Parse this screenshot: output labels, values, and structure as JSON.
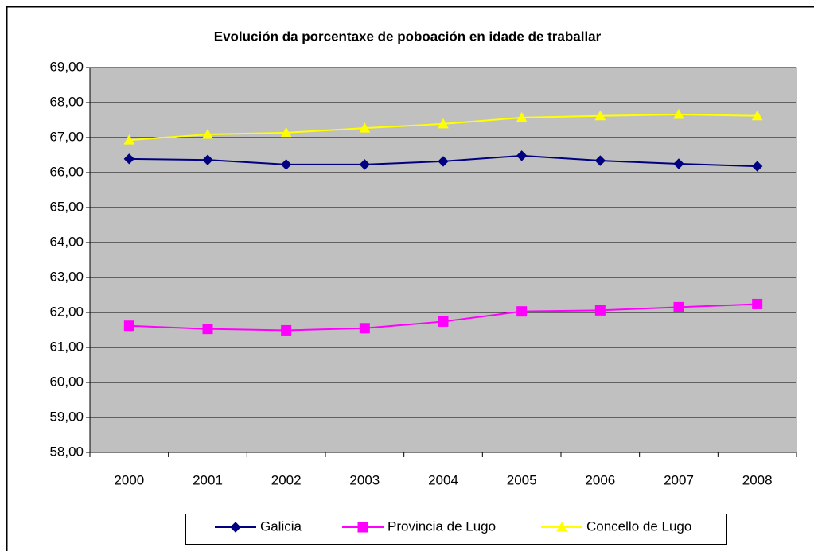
{
  "chart_data": {
    "type": "line",
    "title": "Evolución da porcentaxe de poboación en idade de traballar",
    "categories": [
      "2000",
      "2001",
      "2002",
      "2003",
      "2004",
      "2005",
      "2006",
      "2007",
      "2008"
    ],
    "series": [
      {
        "name": "Galicia",
        "color": "#000080",
        "marker": "diamond",
        "values": [
          66.39,
          66.36,
          66.23,
          66.23,
          66.32,
          66.48,
          66.34,
          66.25,
          66.18
        ]
      },
      {
        "name": "Provincia de Lugo",
        "color": "#ff00ff",
        "marker": "square",
        "values": [
          61.62,
          61.53,
          61.49,
          61.55,
          61.74,
          62.03,
          62.06,
          62.15,
          62.24
        ]
      },
      {
        "name": "Concello de Lugo",
        "color": "#ffff00",
        "marker": "triangle",
        "values": [
          66.93,
          67.09,
          67.14,
          67.27,
          67.39,
          67.57,
          67.62,
          67.66,
          67.62
        ]
      }
    ],
    "ylim": [
      58,
      69
    ],
    "yticks": [
      {
        "value": 58,
        "label": "58,00"
      },
      {
        "value": 59,
        "label": "59,00"
      },
      {
        "value": 60,
        "label": "60,00"
      },
      {
        "value": 61,
        "label": "61,00"
      },
      {
        "value": 62,
        "label": "62,00"
      },
      {
        "value": 63,
        "label": "63,00"
      },
      {
        "value": 64,
        "label": "64,00"
      },
      {
        "value": 65,
        "label": "65,00"
      },
      {
        "value": 66,
        "label": "66,00"
      },
      {
        "value": 67,
        "label": "67,00"
      },
      {
        "value": 68,
        "label": "68,00"
      },
      {
        "value": 69,
        "label": "69,00"
      }
    ],
    "grid": true,
    "legend": "bottom",
    "plot_background": "#c0c0c0"
  }
}
